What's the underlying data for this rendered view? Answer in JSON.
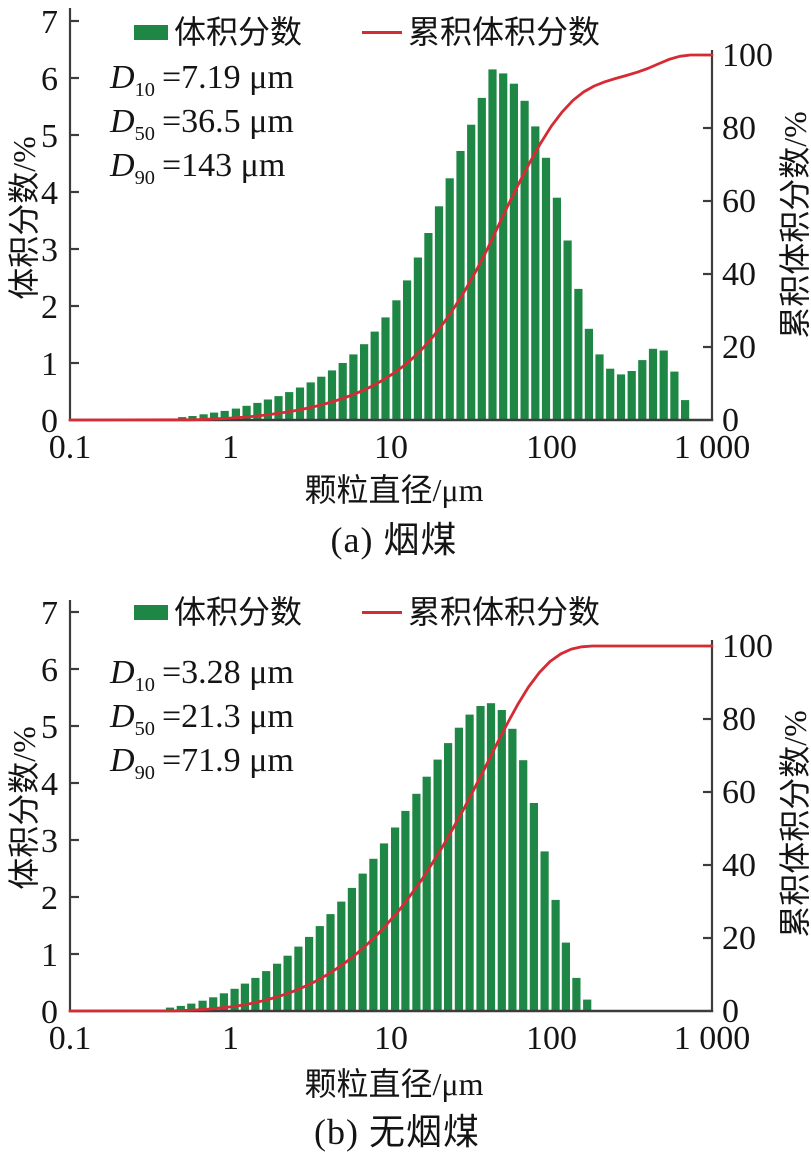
{
  "figure": {
    "background": "#ffffff",
    "colors": {
      "bar_green": "#1e8745",
      "line_red": "#d42b35",
      "axis": "#3c3c3c",
      "text": "#141414"
    },
    "legend": {
      "bar_label": "体积分数",
      "line_label": "累积体积分数"
    },
    "axis_labels": {
      "x": "颗粒直径/μm",
      "y_left": "体积分数/%",
      "y_right": "累积体积分数/%"
    }
  },
  "chart_data": [
    {
      "type": "bar",
      "combo": "log-x histogram with cumulative line (dual y-axes)",
      "title": "(a) 烟煤",
      "xlabel": "颗粒直径/μm",
      "ylabel_left": "体积分数/%",
      "ylabel_right": "累积体积分数/%",
      "x_scale": "log",
      "xlim": [
        0.1,
        1000
      ],
      "ylim_left": [
        0,
        7
      ],
      "ylim_right": [
        0,
        100
      ],
      "grid": false,
      "legend_position": "top-inside",
      "x_tick_labels": [
        "0.1",
        "1",
        "10",
        "100",
        "1 000"
      ],
      "x_tick_values": [
        0.1,
        1,
        10,
        100,
        1000
      ],
      "y_left_ticks": [
        0,
        1,
        2,
        3,
        4,
        5,
        6,
        7
      ],
      "y_right_ticks": [
        0,
        20,
        40,
        60,
        80,
        100
      ],
      "annotations": [
        {
          "sym": "D",
          "sub": "10",
          "val": "=7.19 μm"
        },
        {
          "sym": "D",
          "sub": "50",
          "val": "=36.5 μm"
        },
        {
          "sym": "D",
          "sub": "90",
          "val": "=143 μm"
        }
      ],
      "series": [
        {
          "name": "体积分数",
          "kind": "bar",
          "axis": "left",
          "diameters_um": [
            0.5,
            0.58,
            0.68,
            0.79,
            0.92,
            1.08,
            1.26,
            1.47,
            1.71,
            1.99,
            2.32,
            2.71,
            3.16,
            3.68,
            4.29,
            5.0,
            5.83,
            6.8,
            7.92,
            9.24,
            10.8,
            12.6,
            14.7,
            17.1,
            19.9,
            23.2,
            27.1,
            31.6,
            36.8,
            42.9,
            50.0,
            58.3,
            68.0,
            79.3,
            92.4,
            108,
            126,
            147,
            171,
            199,
            232,
            271,
            316,
            368,
            429,
            500,
            583,
            680
          ],
          "values_pct": [
            0.05,
            0.07,
            0.1,
            0.13,
            0.16,
            0.2,
            0.25,
            0.3,
            0.36,
            0.42,
            0.49,
            0.57,
            0.66,
            0.76,
            0.87,
            1.0,
            1.15,
            1.33,
            1.55,
            1.8,
            2.1,
            2.45,
            2.85,
            3.28,
            3.75,
            4.24,
            4.72,
            5.18,
            5.65,
            6.15,
            6.08,
            5.9,
            5.6,
            5.15,
            4.6,
            3.9,
            3.15,
            2.3,
            1.6,
            1.15,
            0.9,
            0.8,
            0.86,
            1.05,
            1.25,
            1.22,
            0.85,
            0.35
          ]
        },
        {
          "name": "累积体积分数",
          "kind": "line",
          "axis": "right",
          "definition": "running sum of bar values normalized to 100 %, flat at 0 before first bar and flat at 100 up to 1 000 μm"
        }
      ]
    },
    {
      "type": "bar",
      "combo": "log-x histogram with cumulative line (dual y-axes)",
      "title": "(b) 无烟煤",
      "xlabel": "颗粒直径/μm",
      "ylabel_left": "体积分数/%",
      "ylabel_right": "累积体积分数/%",
      "x_scale": "log",
      "xlim": [
        0.1,
        1000
      ],
      "ylim_left": [
        0,
        7
      ],
      "ylim_right": [
        0,
        100
      ],
      "grid": false,
      "legend_position": "top-inside",
      "x_tick_labels": [
        "0.1",
        "1",
        "10",
        "100",
        "1 000"
      ],
      "x_tick_values": [
        0.1,
        1,
        10,
        100,
        1000
      ],
      "y_left_ticks": [
        0,
        1,
        2,
        3,
        4,
        5,
        6,
        7
      ],
      "y_right_ticks": [
        0,
        20,
        40,
        60,
        80,
        100
      ],
      "annotations": [
        {
          "sym": "D",
          "sub": "10",
          "val": "=3.28 μm"
        },
        {
          "sym": "D",
          "sub": "50",
          "val": "=21.3 μm"
        },
        {
          "sym": "D",
          "sub": "90",
          "val": "=71.9 μm"
        }
      ],
      "series": [
        {
          "name": "体积分数",
          "kind": "bar",
          "axis": "left",
          "diameters_um": [
            0.42,
            0.49,
            0.57,
            0.67,
            0.78,
            0.91,
            1.06,
            1.23,
            1.43,
            1.67,
            1.95,
            2.27,
            2.65,
            3.09,
            3.6,
            4.2,
            4.9,
            5.71,
            6.66,
            7.77,
            9.05,
            10.6,
            12.3,
            14.4,
            16.7,
            19.5,
            22.7,
            26.5,
            30.9,
            36.1,
            42.0,
            49.0,
            57.1,
            66.6,
            77.7,
            90.6,
            106,
            123,
            143,
            167
          ],
          "values_pct": [
            0.06,
            0.09,
            0.13,
            0.18,
            0.24,
            0.31,
            0.39,
            0.48,
            0.58,
            0.7,
            0.83,
            0.97,
            1.13,
            1.3,
            1.49,
            1.7,
            1.92,
            2.16,
            2.41,
            2.67,
            2.94,
            3.22,
            3.51,
            3.81,
            4.11,
            4.41,
            4.7,
            4.97,
            5.2,
            5.35,
            5.4,
            5.28,
            4.95,
            4.4,
            3.65,
            2.8,
            1.95,
            1.2,
            0.58,
            0.2
          ]
        },
        {
          "name": "累积体积分数",
          "kind": "line",
          "axis": "right",
          "definition": "running sum of bar values normalized to 100 %, flat at 0 before first bar and flat at 100 up to 1 000 μm"
        }
      ]
    }
  ]
}
